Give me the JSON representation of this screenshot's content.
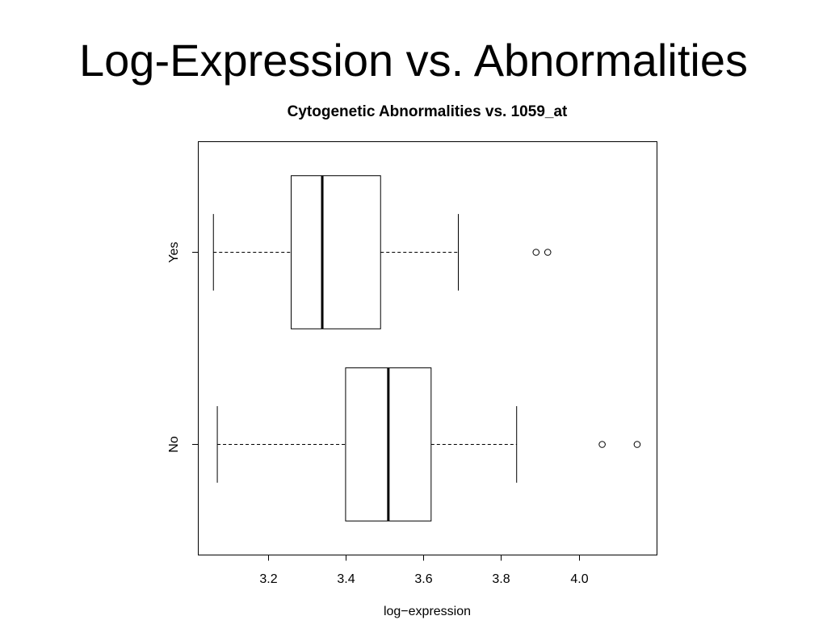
{
  "slide": {
    "title": "Log-Expression vs. Abnormalities"
  },
  "chart_data": {
    "type": "boxplot",
    "horizontal": true,
    "title": "Cytogenetic Abnormalities vs. 1059_at",
    "xlabel": "log−expression",
    "xlim": [
      3.02,
      4.2
    ],
    "x_ticks": [
      3.2,
      3.4,
      3.6,
      3.8,
      4.0
    ],
    "x_tick_labels": [
      "3.2",
      "3.4",
      "3.6",
      "3.8",
      "4.0"
    ],
    "categories": [
      "No",
      "Yes"
    ],
    "boxes": [
      {
        "whisker_low": 3.07,
        "q1": 3.4,
        "median": 3.51,
        "q3": 3.62,
        "whisker_high": 3.84,
        "outliers": [
          4.06,
          4.15
        ]
      },
      {
        "whisker_low": 3.06,
        "q1": 3.26,
        "median": 3.34,
        "q3": 3.49,
        "whisker_high": 3.69,
        "outliers": [
          3.89,
          3.92
        ]
      }
    ],
    "grid": false,
    "colors": {
      "stroke": "#000000",
      "fill": "#ffffff"
    }
  }
}
